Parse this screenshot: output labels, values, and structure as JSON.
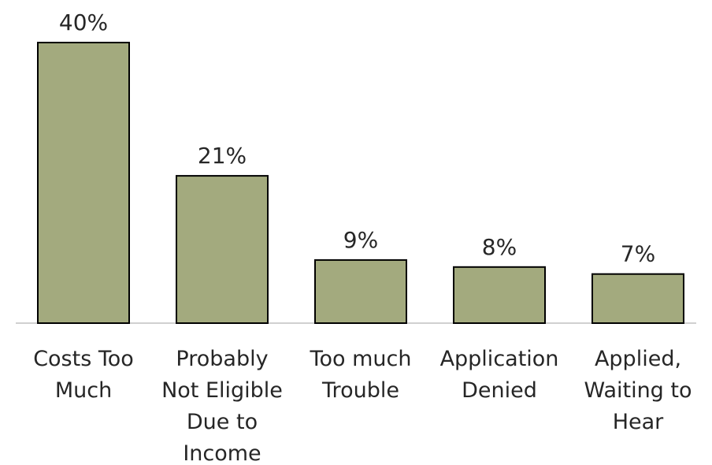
{
  "chart_data": {
    "type": "bar",
    "categories": [
      "Costs Too Much",
      "Probably Not Eligible Due to Income",
      "Too much Trouble",
      "Application Denied",
      "Applied, Waiting to Hear"
    ],
    "category_lines": [
      [
        "Costs Too",
        "Much"
      ],
      [
        "Probably",
        "Not Eligible",
        "Due to",
        "Income"
      ],
      [
        "Too much",
        "Trouble"
      ],
      [
        "Application",
        "Denied"
      ],
      [
        "Applied,",
        "Waiting to",
        "Hear"
      ]
    ],
    "values": [
      40,
      21,
      9,
      8,
      7
    ],
    "data_labels": [
      "40%",
      "21%",
      "9%",
      "8%",
      "7%"
    ],
    "unit": "%",
    "ylim": [
      0,
      40
    ],
    "grid": false,
    "legend": "none",
    "colors": {
      "bar_fill": "#a3aa7e",
      "bar_stroke": "#000000",
      "text": "#262626",
      "axis": "#d0d0d0"
    }
  }
}
